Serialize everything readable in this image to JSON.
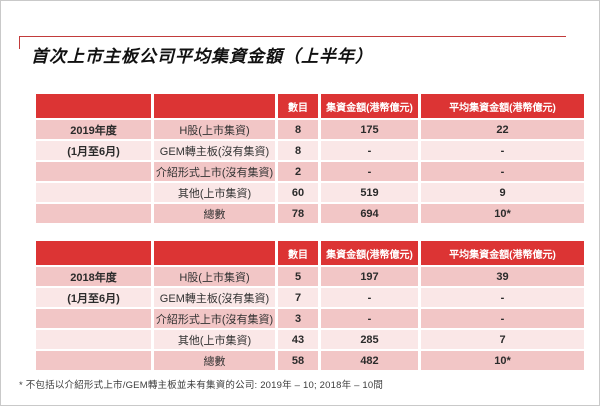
{
  "page": {
    "title": "首次上市主板公司平均集資金額（上半年）",
    "footnote": "* 不包括以介紹形式上市/GEM轉主板並未有集資的公司: 2019年 – 10; 2018年 – 10間"
  },
  "colors": {
    "header_red": "#dc3434",
    "row_stripe_dark": "#f2c6c6",
    "row_stripe_light": "#fae7e7",
    "accent_line_red": "#c23b3b"
  },
  "tables": [
    {
      "year_label": "2019年度",
      "period_label": "(1月至6月)",
      "headers": [
        "數目",
        "集資金額(港幣億元)",
        "平均集資金額(港幣億元)"
      ],
      "rows": [
        {
          "category": "H股(上市集資)",
          "count": "8",
          "amount": "175",
          "average": "22"
        },
        {
          "category": "GEM轉主板(沒有集資)",
          "count": "8",
          "amount": "-",
          "average": "-"
        },
        {
          "category": "介紹形式上市(沒有集資)",
          "count": "2",
          "amount": "-",
          "average": "-"
        },
        {
          "category": "其他(上市集資)",
          "count": "60",
          "amount": "519",
          "average": "9"
        },
        {
          "category": "總數",
          "count": "78",
          "amount": "694",
          "average": "10*"
        }
      ]
    },
    {
      "year_label": "2018年度",
      "period_label": "(1月至6月)",
      "headers": [
        "數目",
        "集資金額(港幣億元)",
        "平均集資金額(港幣億元)"
      ],
      "rows": [
        {
          "category": "H股(上市集資)",
          "count": "5",
          "amount": "197",
          "average": "39"
        },
        {
          "category": "GEM轉主板(沒有集資)",
          "count": "7",
          "amount": "-",
          "average": "-"
        },
        {
          "category": "介紹形式上市(沒有集資)",
          "count": "3",
          "amount": "-",
          "average": "-"
        },
        {
          "category": "其他(上市集資)",
          "count": "43",
          "amount": "285",
          "average": "7"
        },
        {
          "category": "總數",
          "count": "58",
          "amount": "482",
          "average": "10*"
        }
      ]
    }
  ]
}
